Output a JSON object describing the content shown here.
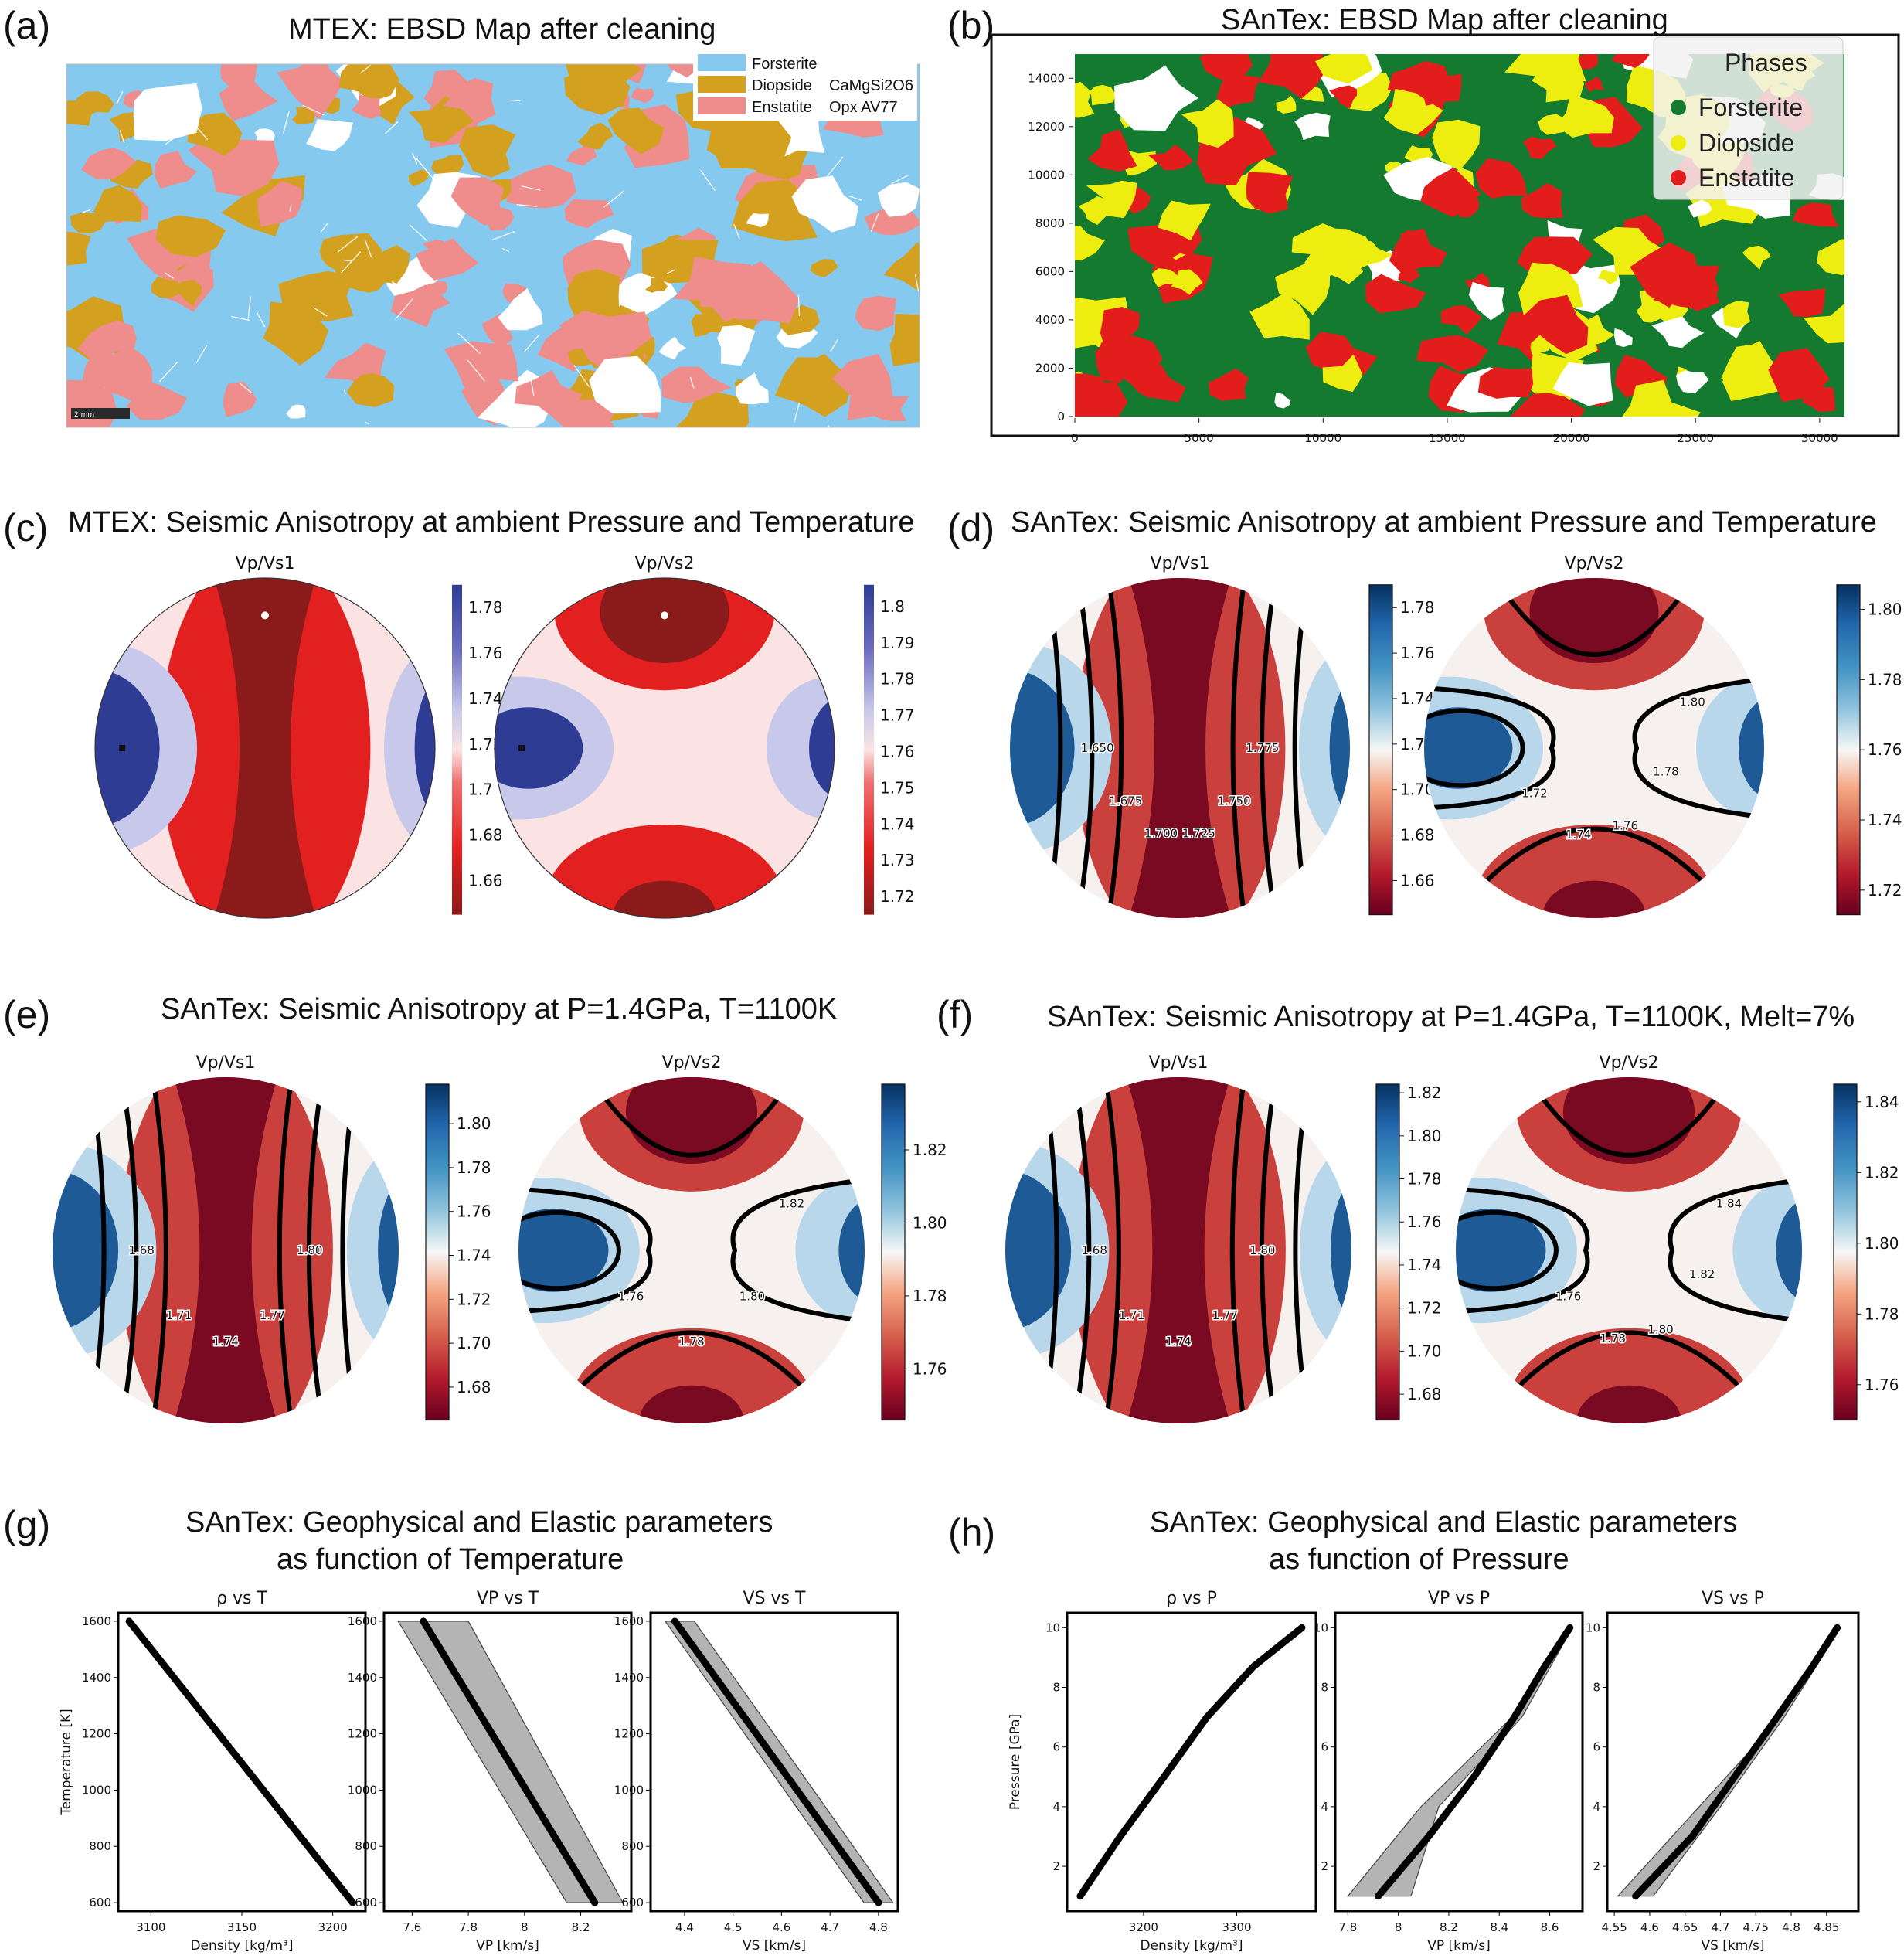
{
  "panels": {
    "a": {
      "label": "(a)",
      "title": "MTEX: EBSD Map after cleaning",
      "legend": [
        {
          "name": "Forsterite",
          "extra": "",
          "color": "#86c9ef"
        },
        {
          "name": "Diopside",
          "extra": "CaMgSi2O6",
          "color": "#d4a020"
        },
        {
          "name": "Enstatite",
          "extra": "Opx AV77",
          "color": "#ef8c8c"
        }
      ],
      "scalebar": "2 mm"
    },
    "b": {
      "label": "(b)",
      "title": "SAnTex: EBSD Map after cleaning",
      "legend_title": "Phases",
      "legend": [
        {
          "name": "Forsterite",
          "color": "#137a30"
        },
        {
          "name": "Diopside",
          "color": "#eded10"
        },
        {
          "name": "Enstatite",
          "color": "#e31c1c"
        }
      ]
    },
    "c": {
      "label": "(c)",
      "title": "MTEX: Seismic Anisotropy at ambient Pressure and Temperature"
    },
    "d": {
      "label": "(d)",
      "title": "SAnTex: Seismic Anisotropy at ambient Pressure and Temperature"
    },
    "e": {
      "label": "(e)",
      "title": "SAnTex: Seismic Anisotropy at P=1.4GPa, T=1100K"
    },
    "f": {
      "label": "(f)",
      "title": "SAnTex: Seismic Anisotropy at P=1.4GPa, T=1100K, Melt=7%"
    },
    "g": {
      "label": "(g)",
      "title_line1": "SAnTex: Geophysical and Elastic parameters",
      "title_line2": "as function of Temperature"
    },
    "h": {
      "label": "(h)",
      "title_line1": "SAnTex: Geophysical and Elastic parameters",
      "title_line2": "as function of Pressure"
    }
  },
  "colors": {
    "mtex_red": "#8b1a1a",
    "mtex_blue": "#2e3c94",
    "rdbu_red": "#67001f",
    "rdbu_blue": "#053061",
    "forsterite_b": "#137a30",
    "diopside_b": "#eded10",
    "enstatite_b": "#e31c1c"
  },
  "chart_data": [
    {
      "id": "b_map",
      "type": "heatmap",
      "title": "SAnTex: EBSD Map after cleaning",
      "xlim": [
        0,
        31000
      ],
      "ylim": [
        0,
        15000
      ],
      "xticks": [
        0,
        5000,
        10000,
        15000,
        20000,
        25000,
        30000
      ],
      "yticks": [
        0,
        2000,
        4000,
        6000,
        8000,
        10000,
        12000,
        14000
      ],
      "legend_title": "Phases",
      "legend": [
        "Forsterite",
        "Diopside",
        "Enstatite"
      ]
    },
    {
      "id": "c1",
      "type": "heatmap",
      "group": "c",
      "subtitle": "Vp/Vs1",
      "style": "mtex",
      "cb_ticks": [
        1.78,
        1.76,
        1.74,
        1.72,
        1.7,
        1.68,
        1.66
      ],
      "cb_range": [
        1.645,
        1.79
      ]
    },
    {
      "id": "c2",
      "type": "heatmap",
      "group": "c",
      "subtitle": "Vp/Vs2",
      "style": "mtex",
      "cb_ticks": [
        1.8,
        1.79,
        1.78,
        1.77,
        1.76,
        1.75,
        1.74,
        1.73,
        1.72
      ],
      "cb_range": [
        1.715,
        1.806
      ]
    },
    {
      "id": "d1",
      "type": "heatmap",
      "group": "d",
      "subtitle": "Vp/Vs1",
      "style": "rdbu",
      "cb_ticks": [
        1.78,
        1.76,
        1.74,
        1.72,
        1.7,
        1.68,
        1.66
      ],
      "cb_range": [
        1.645,
        1.79
      ],
      "contour_labels": [
        "1.650",
        "1.675",
        "1.700",
        "1.725",
        "1.750",
        "1.775"
      ]
    },
    {
      "id": "d2",
      "type": "heatmap",
      "group": "d",
      "subtitle": "Vp/Vs2",
      "style": "rdbu",
      "cb_ticks": [
        1.8,
        1.78,
        1.76,
        1.74,
        1.72
      ],
      "cb_range": [
        1.713,
        1.807
      ],
      "contour_labels": [
        "1.72",
        "1.74",
        "1.76",
        "1.78",
        "1.80"
      ]
    },
    {
      "id": "e1",
      "type": "heatmap",
      "group": "e",
      "subtitle": "Vp/Vs1",
      "style": "rdbu",
      "cb_ticks": [
        1.8,
        1.78,
        1.76,
        1.74,
        1.72,
        1.7,
        1.68
      ],
      "cb_range": [
        1.665,
        1.818
      ],
      "contour_labels": [
        "1.68",
        "1.71",
        "1.74",
        "1.77",
        "1.80"
      ]
    },
    {
      "id": "e2",
      "type": "heatmap",
      "group": "e",
      "subtitle": "Vp/Vs2",
      "style": "rdbu",
      "cb_ticks": [
        1.82,
        1.8,
        1.78,
        1.76
      ],
      "cb_range": [
        1.746,
        1.838
      ],
      "contour_labels": [
        "1.76",
        "1.78",
        "1.80",
        "1.82"
      ]
    },
    {
      "id": "f1",
      "type": "heatmap",
      "group": "f",
      "subtitle": "Vp/Vs1",
      "style": "rdbu",
      "cb_ticks": [
        1.82,
        1.8,
        1.78,
        1.76,
        1.74,
        1.72,
        1.7,
        1.68
      ],
      "cb_range": [
        1.668,
        1.824
      ],
      "contour_labels": [
        "1.68",
        "1.71",
        "1.74",
        "1.77",
        "1.80"
      ]
    },
    {
      "id": "f2",
      "type": "heatmap",
      "group": "f",
      "subtitle": "Vp/Vs2",
      "style": "rdbu",
      "cb_ticks": [
        1.84,
        1.82,
        1.8,
        1.78,
        1.76
      ],
      "cb_range": [
        1.75,
        1.845
      ],
      "contour_labels": [
        "1.76",
        "1.78",
        "1.80",
        "1.82",
        "1.84"
      ]
    },
    {
      "id": "g1",
      "type": "line",
      "group": "g",
      "subtitle": "ρ vs T",
      "xlabel": "Density [kg/m³]",
      "ylabel": "Temperature [K]",
      "xlim": [
        3082,
        3218
      ],
      "ylim": [
        570,
        1630
      ],
      "xticks": [
        3100,
        3150,
        3200
      ],
      "yticks": [
        600,
        800,
        1000,
        1200,
        1400,
        1600
      ],
      "series": [
        {
          "x": [
            3211,
            3088
          ],
          "y": [
            600,
            1600
          ]
        }
      ]
    },
    {
      "id": "g2",
      "type": "area",
      "group": "g",
      "subtitle": "VP vs T",
      "xlabel": "VP [km/s]",
      "ylabel": "",
      "xlim": [
        7.5,
        8.38
      ],
      "ylim": [
        570,
        1630
      ],
      "xticks": [
        7.6,
        7.8,
        8.0,
        8.2
      ],
      "yticks": [
        600,
        800,
        1000,
        1200,
        1400,
        1600
      ],
      "series": [
        {
          "x": [
            8.25,
            7.64
          ],
          "y": [
            600,
            1600
          ]
        }
      ],
      "band": {
        "y": [
          600,
          1600
        ],
        "low": [
          8.15,
          7.55
        ],
        "high": [
          8.35,
          7.8
        ]
      }
    },
    {
      "id": "g3",
      "type": "area",
      "group": "g",
      "subtitle": "VS vs T",
      "xlabel": "VS [km/s]",
      "ylabel": "",
      "xlim": [
        4.33,
        4.84
      ],
      "ylim": [
        570,
        1630
      ],
      "xticks": [
        4.4,
        4.5,
        4.6,
        4.7,
        4.8
      ],
      "yticks": [
        600,
        800,
        1000,
        1200,
        1400,
        1600
      ],
      "series": [
        {
          "x": [
            4.8,
            4.38
          ],
          "y": [
            600,
            1600
          ]
        }
      ],
      "band": {
        "y": [
          600,
          1600
        ],
        "low": [
          4.77,
          4.36
        ],
        "high": [
          4.83,
          4.42
        ]
      }
    },
    {
      "id": "h1",
      "type": "line",
      "group": "h",
      "subtitle": "ρ vs P",
      "xlabel": "Density [kg/m³]",
      "ylabel": "Pressure [GPa]",
      "xlim": [
        3118,
        3385
      ],
      "ylim": [
        0.5,
        10.5
      ],
      "xticks": [
        3200,
        3300
      ],
      "yticks": [
        2,
        4,
        6,
        8,
        10
      ],
      "series": [
        {
          "x": [
            3132,
            3175,
            3222,
            3268,
            3318,
            3370
          ],
          "y": [
            1,
            3,
            5,
            7,
            8.7,
            10
          ]
        }
      ]
    },
    {
      "id": "h2",
      "type": "area",
      "group": "h",
      "subtitle": "VP vs P",
      "xlabel": "VP [km/s]",
      "ylabel": "",
      "xlim": [
        7.75,
        8.73
      ],
      "ylim": [
        0.5,
        10.5
      ],
      "xticks": [
        7.8,
        8.0,
        8.2,
        8.4,
        8.6
      ],
      "yticks": [
        2,
        4,
        6,
        8,
        10
      ],
      "series": [
        {
          "x": [
            7.92,
            8.12,
            8.3,
            8.46,
            8.58,
            8.68
          ],
          "y": [
            1,
            3,
            5,
            7,
            8.7,
            10
          ]
        }
      ],
      "band": {
        "y": [
          1,
          4,
          7,
          10
        ],
        "low": [
          7.8,
          8.09,
          8.45,
          8.67
        ],
        "high": [
          8.05,
          8.16,
          8.49,
          8.69
        ]
      }
    },
    {
      "id": "h3",
      "type": "area",
      "group": "h",
      "subtitle": "VS vs P",
      "xlabel": "VS [km/s]",
      "ylabel": "",
      "xlim": [
        4.54,
        4.895
      ],
      "ylim": [
        0.5,
        10.5
      ],
      "xticks": [
        4.55,
        4.6,
        4.65,
        4.7,
        4.75,
        4.8,
        4.85
      ],
      "yticks": [
        2,
        4,
        6,
        8,
        10
      ],
      "series": [
        {
          "x": [
            4.58,
            4.66,
            4.72,
            4.78,
            4.83,
            4.865
          ],
          "y": [
            1,
            3,
            5,
            7,
            8.7,
            10
          ]
        }
      ],
      "band": {
        "y": [
          1,
          4,
          7,
          10
        ],
        "low": [
          4.555,
          4.67,
          4.785,
          4.86
        ],
        "high": [
          4.605,
          4.7,
          4.79,
          4.87
        ]
      }
    }
  ]
}
